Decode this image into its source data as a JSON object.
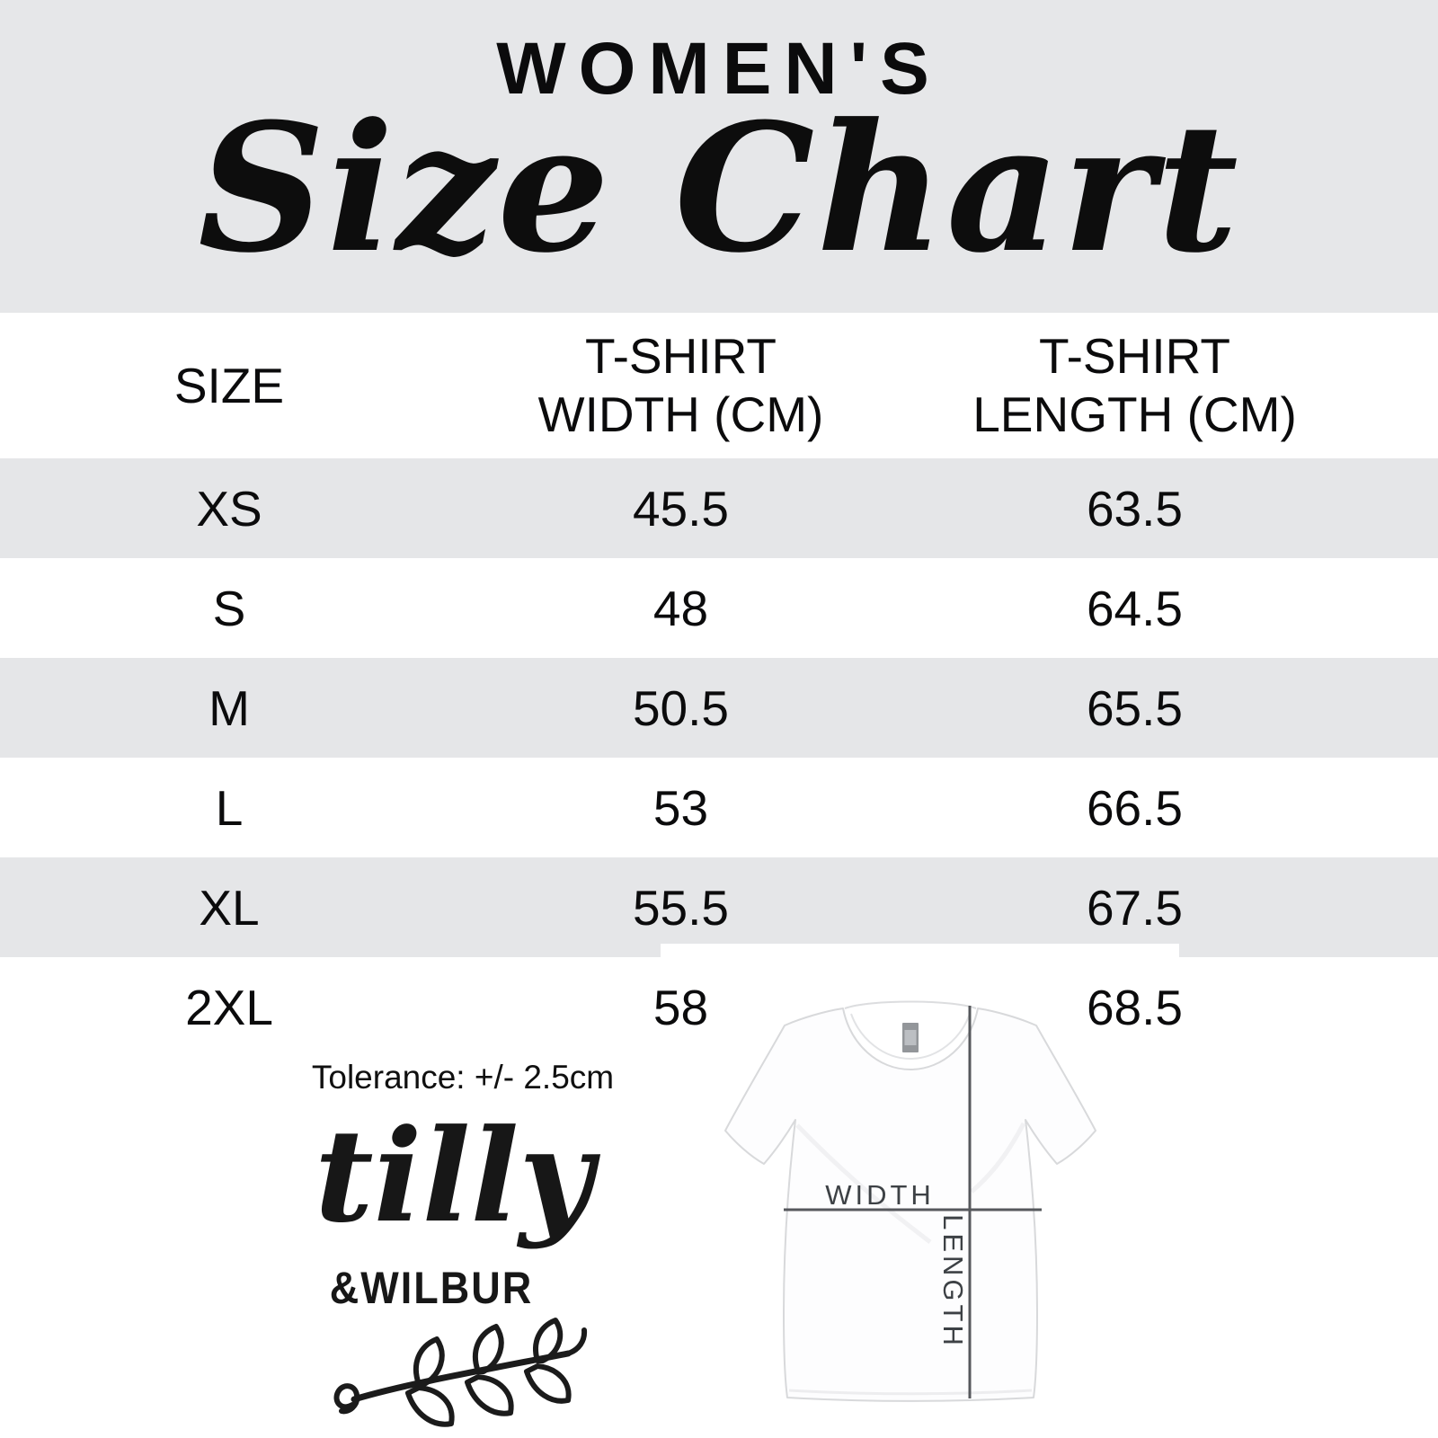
{
  "banner": {
    "kicker": "WOMEN'S",
    "title": "Size Chart"
  },
  "table": {
    "columns": [
      {
        "lines": [
          "SIZE"
        ]
      },
      {
        "lines": [
          "T-SHIRT",
          "WIDTH (CM)"
        ]
      },
      {
        "lines": [
          "T-SHIRT",
          "LENGTH (CM)"
        ]
      }
    ],
    "rows": [
      {
        "size": "XS",
        "width": "45.5",
        "length": "63.5"
      },
      {
        "size": "S",
        "width": "48",
        "length": "64.5"
      },
      {
        "size": "M",
        "width": "50.5",
        "length": "65.5"
      },
      {
        "size": "L",
        "width": "53",
        "length": "66.5"
      },
      {
        "size": "XL",
        "width": "55.5",
        "length": "67.5"
      },
      {
        "size": "2XL",
        "width": "58",
        "length": "68.5"
      }
    ]
  },
  "tolerance_note": "Tolerance: +/- 2.5cm",
  "logo": {
    "script_text": "tilly",
    "sub_text": "&WILBUR"
  },
  "diagram": {
    "width_label": "WIDTH",
    "length_label": "LENGTH"
  },
  "colors": {
    "banner_bg": "#e6e7e9",
    "row_alt_bg": "#e5e6e8",
    "text": "#0b0b0c",
    "measure_line": "#56585c",
    "diagram_label": "#3d4145"
  },
  "chart_data": {
    "type": "table",
    "title": "WOMEN'S Size Chart",
    "columns": [
      "SIZE",
      "T-SHIRT WIDTH (CM)",
      "T-SHIRT LENGTH (CM)"
    ],
    "rows": [
      [
        "XS",
        45.5,
        63.5
      ],
      [
        "S",
        48,
        64.5
      ],
      [
        "M",
        50.5,
        65.5
      ],
      [
        "L",
        53,
        66.5
      ],
      [
        "XL",
        55.5,
        67.5
      ],
      [
        "2XL",
        58,
        68.5
      ]
    ],
    "notes": "Tolerance: +/- 2.5cm"
  }
}
